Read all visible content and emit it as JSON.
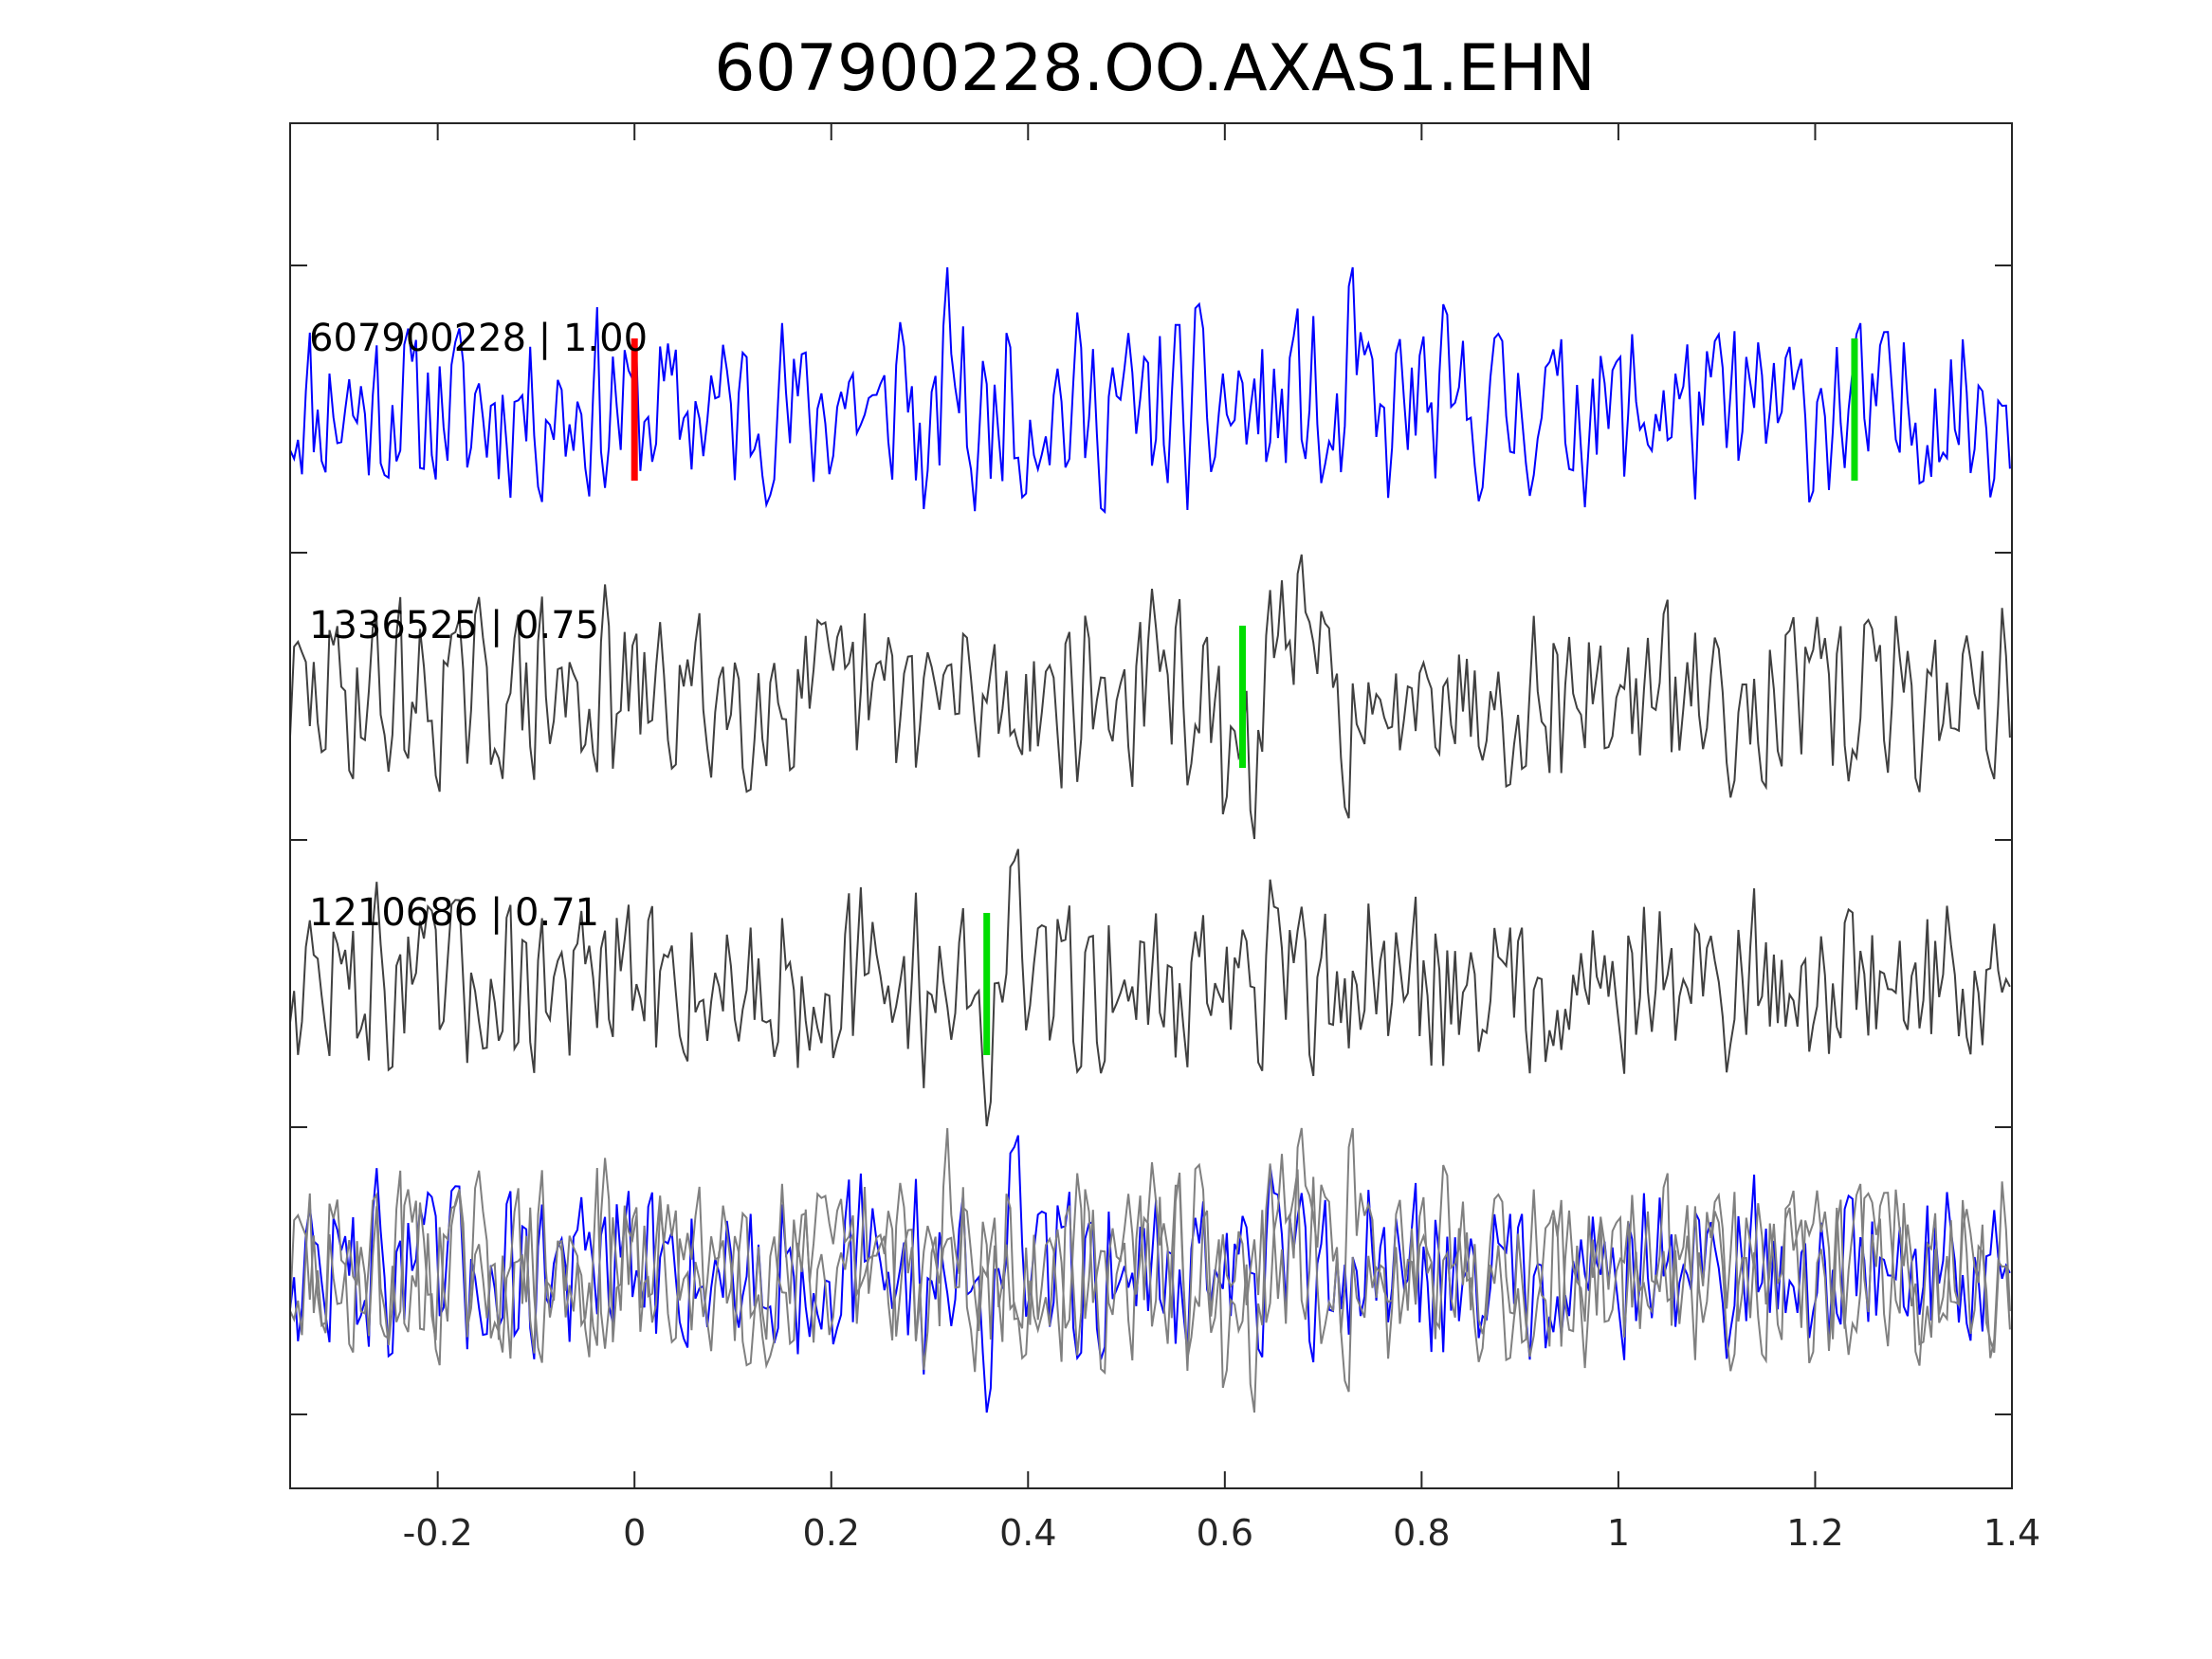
{
  "chart_data": {
    "type": "line",
    "title": "607900228.OO.AXAS1.EHN",
    "xlabel": "",
    "ylabel": "",
    "xlim": [
      -0.35,
      1.4
    ],
    "xticks": [
      -0.2,
      0,
      0.2,
      0.4,
      0.6,
      0.8,
      1,
      1.2,
      1.4
    ],
    "xtick_labels": [
      "-0.2",
      "0",
      "0.2",
      "0.4",
      "0.6",
      "0.8",
      "1",
      "1.2",
      "1.4"
    ],
    "grid": false,
    "legend": "none",
    "sample_interval": 0.004,
    "traces": [
      {
        "label": "607900228 | 1.00",
        "color": "#0000ff",
        "picks": [
          {
            "x": 0.0,
            "color": "#ff0000"
          },
          {
            "x": 1.24,
            "color": "#00dd00"
          }
        ]
      },
      {
        "label": "1336525 | 0.75",
        "color": "#404040",
        "picks": [
          {
            "x": 0.618,
            "color": "#00dd00"
          }
        ]
      },
      {
        "label": "1210686 | 0.71",
        "color": "#404040",
        "picks": [
          {
            "x": 0.358,
            "color": "#00dd00"
          }
        ]
      },
      {
        "label": "",
        "overlay": true,
        "overlay_colors": [
          "#808080",
          "#808080",
          "#0000ff"
        ],
        "picks": []
      }
    ]
  }
}
